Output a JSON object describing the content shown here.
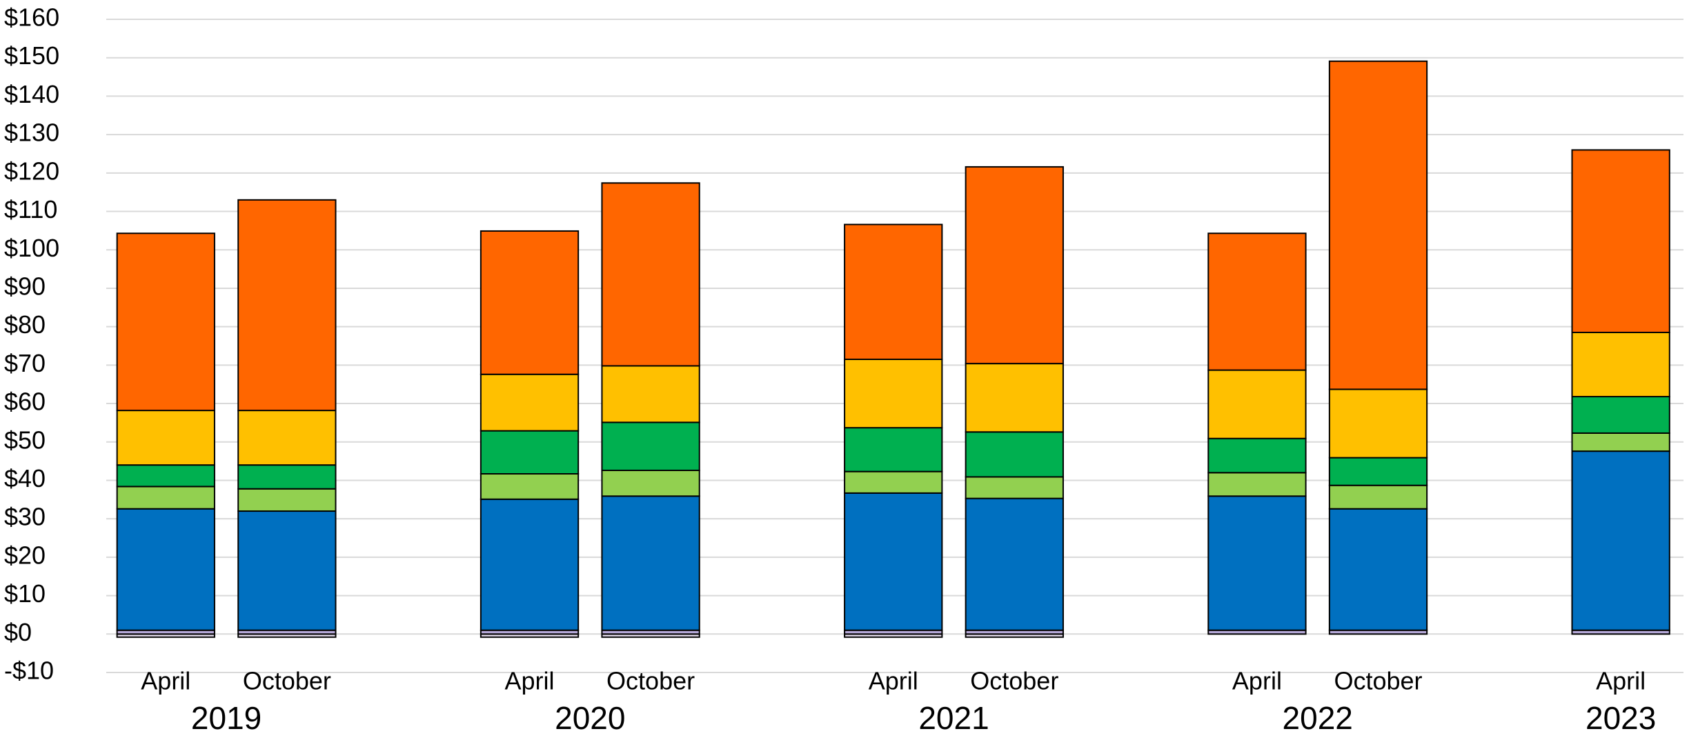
{
  "chart_data": {
    "type": "stacked_bar",
    "groups": [
      {
        "name": "2019",
        "categories": [
          "April",
          "October"
        ]
      },
      {
        "name": "2020",
        "categories": [
          "April",
          "October"
        ]
      },
      {
        "name": "2021",
        "categories": [
          "April",
          "October"
        ]
      },
      {
        "name": "2022",
        "categories": [
          "April",
          "October"
        ]
      },
      {
        "name": "2023",
        "categories": [
          "April"
        ]
      }
    ],
    "series": [
      {
        "color": "#ece4f5",
        "values": [
          -0.8,
          -0.8,
          -0.8,
          -0.8,
          -0.8,
          -0.8,
          0,
          0,
          0
        ]
      },
      {
        "color": "#b4a7d6",
        "values": [
          1,
          1,
          1,
          1,
          1,
          1,
          1,
          1,
          1
        ]
      },
      {
        "color": "#0070c0",
        "values": [
          31.6,
          31.0,
          34.1,
          34.9,
          35.7,
          34.3,
          34.9,
          31.6,
          46.6
        ]
      },
      {
        "color": "#92d050",
        "values": [
          5.8,
          5.8,
          6.6,
          6.7,
          5.6,
          5.6,
          6.1,
          6.1,
          4.7
        ]
      },
      {
        "color": "#00b050",
        "values": [
          5.6,
          6.2,
          11.2,
          12.5,
          11.4,
          11.7,
          8.9,
          7.2,
          9.5
        ]
      },
      {
        "color": "#ffc000",
        "values": [
          14.2,
          14.2,
          14.7,
          14.7,
          17.8,
          17.8,
          17.8,
          17.8,
          16.7
        ]
      },
      {
        "color": "#ff6600",
        "values": [
          46.1,
          54.8,
          37.3,
          47.6,
          35.1,
          51.2,
          35.6,
          85.4,
          47.5
        ]
      }
    ],
    "ylim": [
      -10,
      160
    ],
    "yticks": [
      {
        "value": -10,
        "label": "-$10"
      },
      {
        "value": 0,
        "label": "$0"
      },
      {
        "value": 10,
        "label": "$10"
      },
      {
        "value": 20,
        "label": "$20"
      },
      {
        "value": 30,
        "label": "$30"
      },
      {
        "value": 40,
        "label": "$40"
      },
      {
        "value": 50,
        "label": "$50"
      },
      {
        "value": 60,
        "label": "$60"
      },
      {
        "value": 70,
        "label": "$70"
      },
      {
        "value": 80,
        "label": "$80"
      },
      {
        "value": 90,
        "label": "$90"
      },
      {
        "value": 100,
        "label": "$100"
      },
      {
        "value": 110,
        "label": "$110"
      },
      {
        "value": 120,
        "label": "$120"
      },
      {
        "value": 130,
        "label": "$130"
      },
      {
        "value": 140,
        "label": "$140"
      },
      {
        "value": 150,
        "label": "$150"
      },
      {
        "value": 160,
        "label": "$160"
      }
    ],
    "grid": true
  }
}
